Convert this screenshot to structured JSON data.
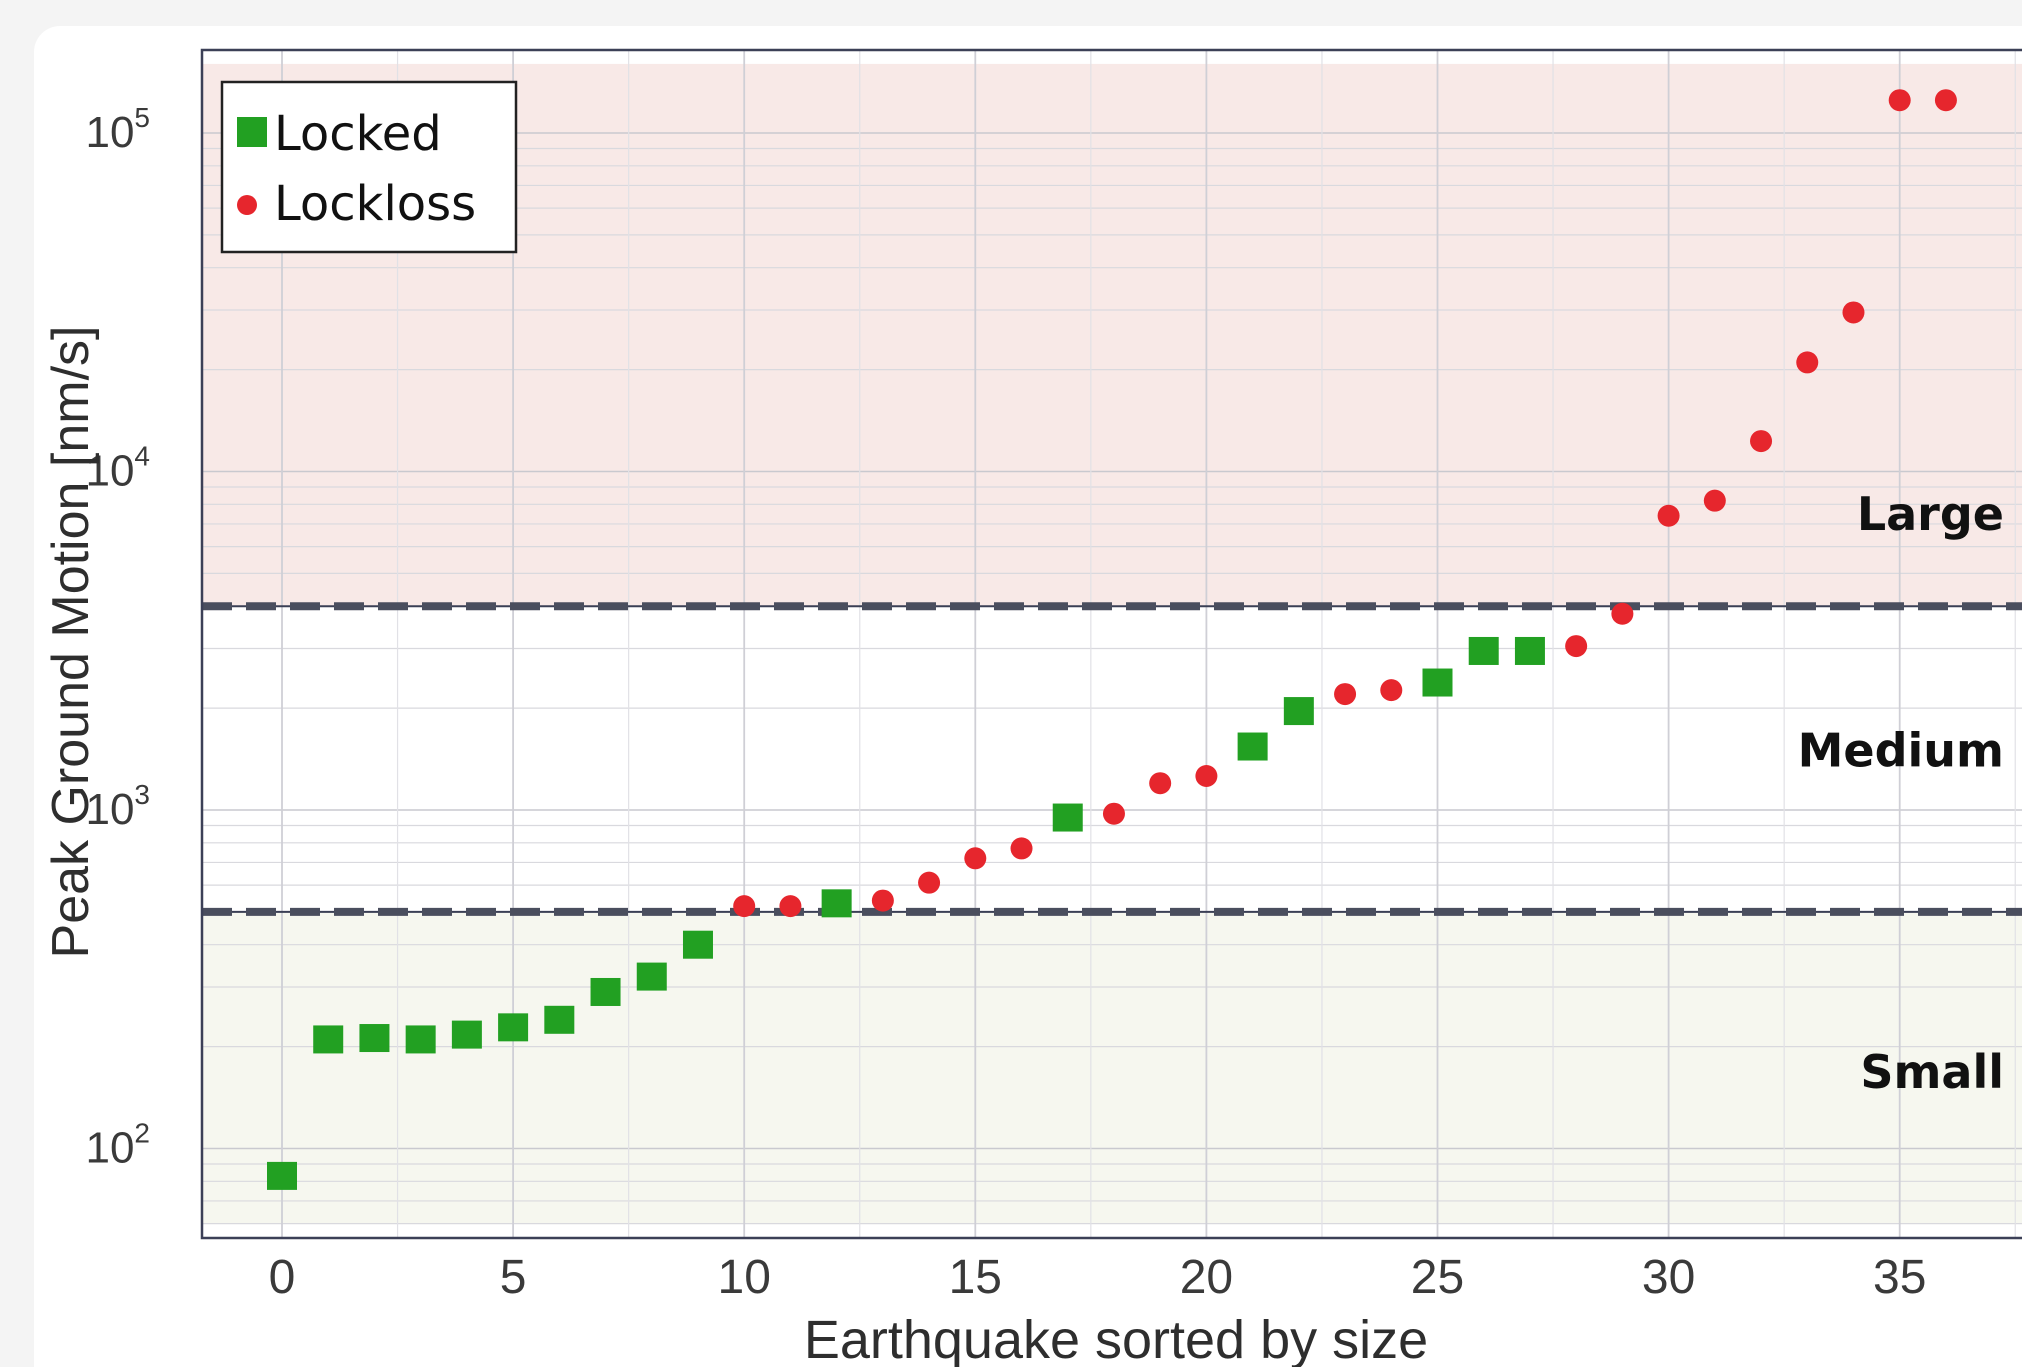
{
  "chart_data": {
    "type": "scatter",
    "xlabel": "Earthquake sorted by size",
    "ylabel": "Peak Ground Motion [nm/s]",
    "xlim": [
      -1.8,
      37.5
    ],
    "ylim": [
      60,
      160000
    ],
    "yscale": "log",
    "grid": true,
    "legend_position": "top-left",
    "x_ticks": [
      0,
      5,
      10,
      15,
      20,
      25,
      30,
      35
    ],
    "x_tick_labels": [
      "0",
      "5",
      "10",
      "15",
      "20",
      "25",
      "30",
      "35"
    ],
    "y_ticks": [
      100,
      1000,
      10000,
      100000
    ],
    "y_tick_labels": [
      {
        "base": "10",
        "exp": "2"
      },
      {
        "base": "10",
        "exp": "3"
      },
      {
        "base": "10",
        "exp": "4"
      },
      {
        "base": "10",
        "exp": "5"
      }
    ],
    "thresholds": [
      500,
      4000
    ],
    "regions": [
      {
        "label": "Small",
        "from": 60,
        "to": 500,
        "color": "#f6f7ef"
      },
      {
        "label": "Medium",
        "from": 500,
        "to": 4000,
        "color": "#ffffff"
      },
      {
        "label": "Large",
        "from": 4000,
        "to": 160000,
        "color": "#f8e9e7"
      }
    ],
    "series": [
      {
        "name": "Locked",
        "marker": "square",
        "color": "#22a022",
        "points": [
          [
            0,
            83
          ],
          [
            1,
            210
          ],
          [
            2,
            212
          ],
          [
            3,
            210
          ],
          [
            4,
            217
          ],
          [
            5,
            228
          ],
          [
            6,
            240
          ],
          [
            7,
            290
          ],
          [
            8,
            322
          ],
          [
            9,
            400
          ],
          [
            12,
            530
          ],
          [
            17,
            950
          ],
          [
            21,
            1540
          ],
          [
            22,
            1960
          ],
          [
            25,
            2380
          ],
          [
            26,
            2950
          ],
          [
            27,
            2950
          ]
        ]
      },
      {
        "name": "Lockloss",
        "marker": "circle",
        "color": "#e6262d",
        "points": [
          [
            10,
            520
          ],
          [
            11,
            520
          ],
          [
            13,
            540
          ],
          [
            14,
            610
          ],
          [
            15,
            720
          ],
          [
            16,
            770
          ],
          [
            18,
            975
          ],
          [
            19,
            1200
          ],
          [
            20,
            1260
          ],
          [
            23,
            2200
          ],
          [
            24,
            2260
          ],
          [
            28,
            3050
          ],
          [
            29,
            3800
          ],
          [
            30,
            7400
          ],
          [
            31,
            8200
          ],
          [
            32,
            12300
          ],
          [
            33,
            21000
          ],
          [
            34,
            29500
          ],
          [
            35,
            125000
          ],
          [
            36,
            125000
          ]
        ]
      }
    ]
  }
}
